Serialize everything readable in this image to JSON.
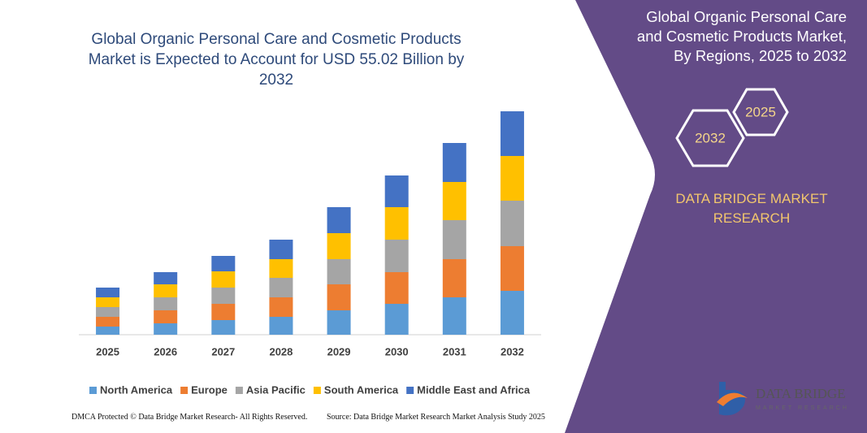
{
  "chart_data": {
    "type": "stacked_bar",
    "title": "Global Organic Personal Care and Cosmetic Products Market is Expected to Account for USD 55.02 Billion by 2032",
    "categories": [
      "2025",
      "2026",
      "2027",
      "2028",
      "2029",
      "2030",
      "2031",
      "2032"
    ],
    "series": [
      {
        "name": "North America",
        "color": "#5b9bd5",
        "values": [
          10,
          14,
          18,
          22,
          30,
          38,
          46,
          54
        ]
      },
      {
        "name": "Europe",
        "color": "#ed7d31",
        "values": [
          12,
          16,
          20,
          24,
          32,
          39,
          47,
          55
        ]
      },
      {
        "name": "Asia Pacific",
        "color": "#a5a5a5",
        "values": [
          12,
          16,
          20,
          24,
          31,
          40,
          48,
          56
        ]
      },
      {
        "name": "South America",
        "color": "#ffc000",
        "values": [
          12,
          16,
          20,
          23,
          32,
          40,
          47,
          55
        ]
      },
      {
        "name": "Middle East and Africa",
        "color": "#4472c4",
        "values": [
          12,
          15,
          19,
          24,
          32,
          39,
          48,
          55
        ]
      }
    ],
    "legend": "bottom"
  },
  "panel": {
    "title": "Global Organic Personal Care and Cosmetic Products Market, By Regions, 2025 to 2032",
    "hex_years": [
      "2025",
      "2032"
    ],
    "brand": "DATA BRIDGE MARKET RESEARCH",
    "logo_name": "DATA BRIDGE",
    "logo_tagline": "MARKET RESEARCH"
  },
  "footer": {
    "left": "DMCA Protected © Data Bridge Market Research- All Rights Reserved.",
    "right": "Source: Data Bridge Market Research Market Analysis Study 2025"
  }
}
